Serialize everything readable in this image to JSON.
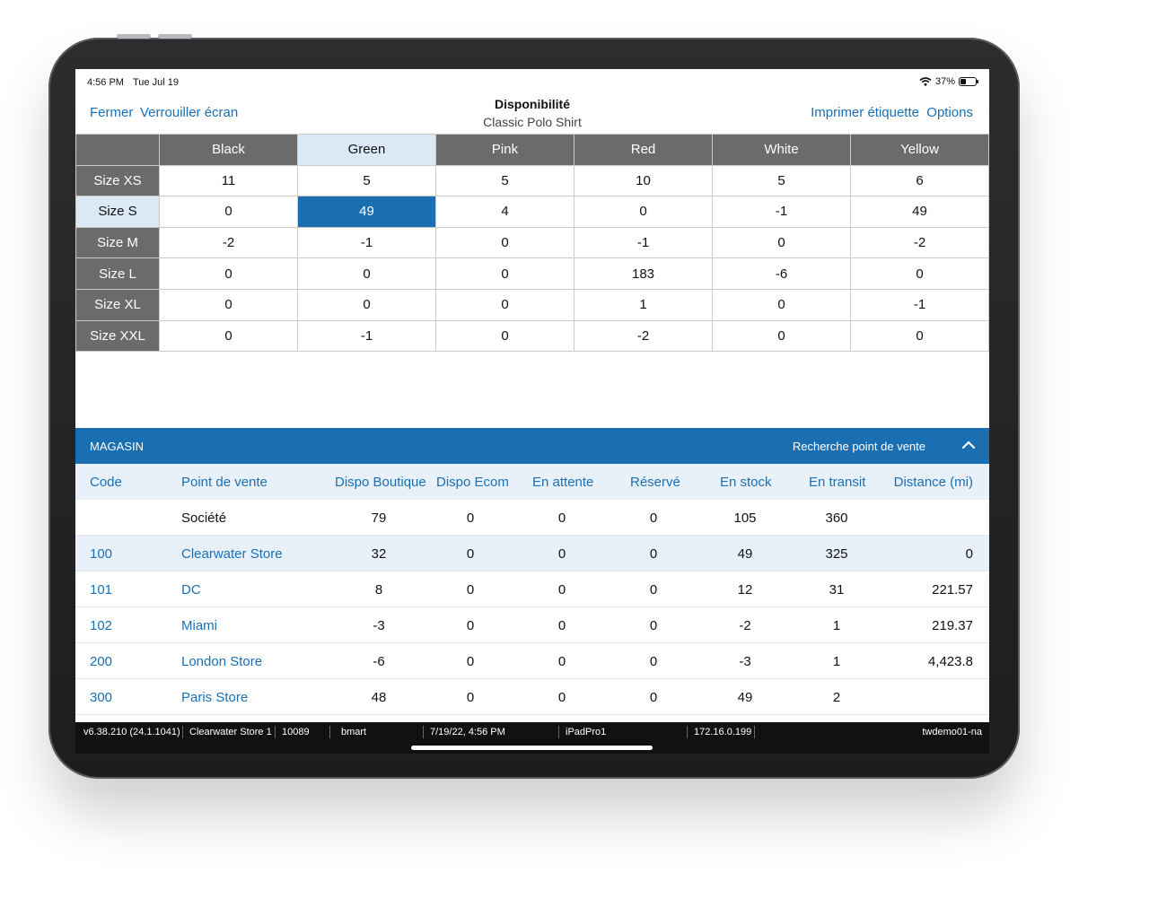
{
  "status": {
    "time": "4:56 PM",
    "date": "Tue Jul 19",
    "battery": "37%"
  },
  "nav": {
    "close": "Fermer",
    "lock": "Verrouiller écran",
    "title": "Disponibilité",
    "subtitle": "Classic Polo Shirt",
    "print": "Imprimer étiquette",
    "options": "Options"
  },
  "matrix": {
    "colors": [
      "Black",
      "Green",
      "Pink",
      "Red",
      "White",
      "Yellow"
    ],
    "sizes": [
      "Size XS",
      "Size S",
      "Size M",
      "Size L",
      "Size XL",
      "Size XXL"
    ],
    "values": [
      [
        "11",
        "5",
        "5",
        "10",
        "5",
        "6"
      ],
      [
        "0",
        "49",
        "4",
        "0",
        "-1",
        "49"
      ],
      [
        "-2",
        "-1",
        "0",
        "-1",
        "0",
        "-2"
      ],
      [
        "0",
        "0",
        "0",
        "183",
        "-6",
        "0"
      ],
      [
        "0",
        "0",
        "0",
        "1",
        "0",
        "-1"
      ],
      [
        "0",
        "-1",
        "0",
        "-2",
        "0",
        "0"
      ]
    ],
    "selected_color": "Green",
    "selected_size": "Size S"
  },
  "magasin": {
    "label": "MAGASIN",
    "search": "Recherche point de vente",
    "headers": [
      "Code",
      "Point de vente",
      "Dispo Boutique",
      "Dispo Ecom",
      "En attente",
      "Réservé",
      "En stock",
      "En transit",
      "Distance (mi)"
    ],
    "rows": [
      [
        "",
        "Société",
        "79",
        "0",
        "0",
        "0",
        "105",
        "360",
        ""
      ],
      [
        "100",
        "Clearwater Store",
        "32",
        "0",
        "0",
        "0",
        "49",
        "325",
        "0"
      ],
      [
        "101",
        "DC",
        "8",
        "0",
        "0",
        "0",
        "12",
        "31",
        "221.57"
      ],
      [
        "102",
        "Miami",
        "-3",
        "0",
        "0",
        "0",
        "-2",
        "1",
        "219.37"
      ],
      [
        "200",
        "London Store",
        "-6",
        "0",
        "0",
        "0",
        "-3",
        "1",
        "4,423.8"
      ],
      [
        "300",
        "Paris Store",
        "48",
        "0",
        "0",
        "0",
        "49",
        "2",
        ""
      ]
    ]
  },
  "footer": {
    "version": "v6.38.210 (24.1.1041)",
    "store": "Clearwater Store 1",
    "register": "10089",
    "user": "bmart",
    "datetime": "7/19/22, 4:56 PM",
    "device": "iPadPro1",
    "ip": "172.16.0.199",
    "server": "twdemo01-na"
  },
  "accent_color": "#1a6fb3",
  "header_gray": "#6b6b6b",
  "selection_light": "#dbe9f7"
}
